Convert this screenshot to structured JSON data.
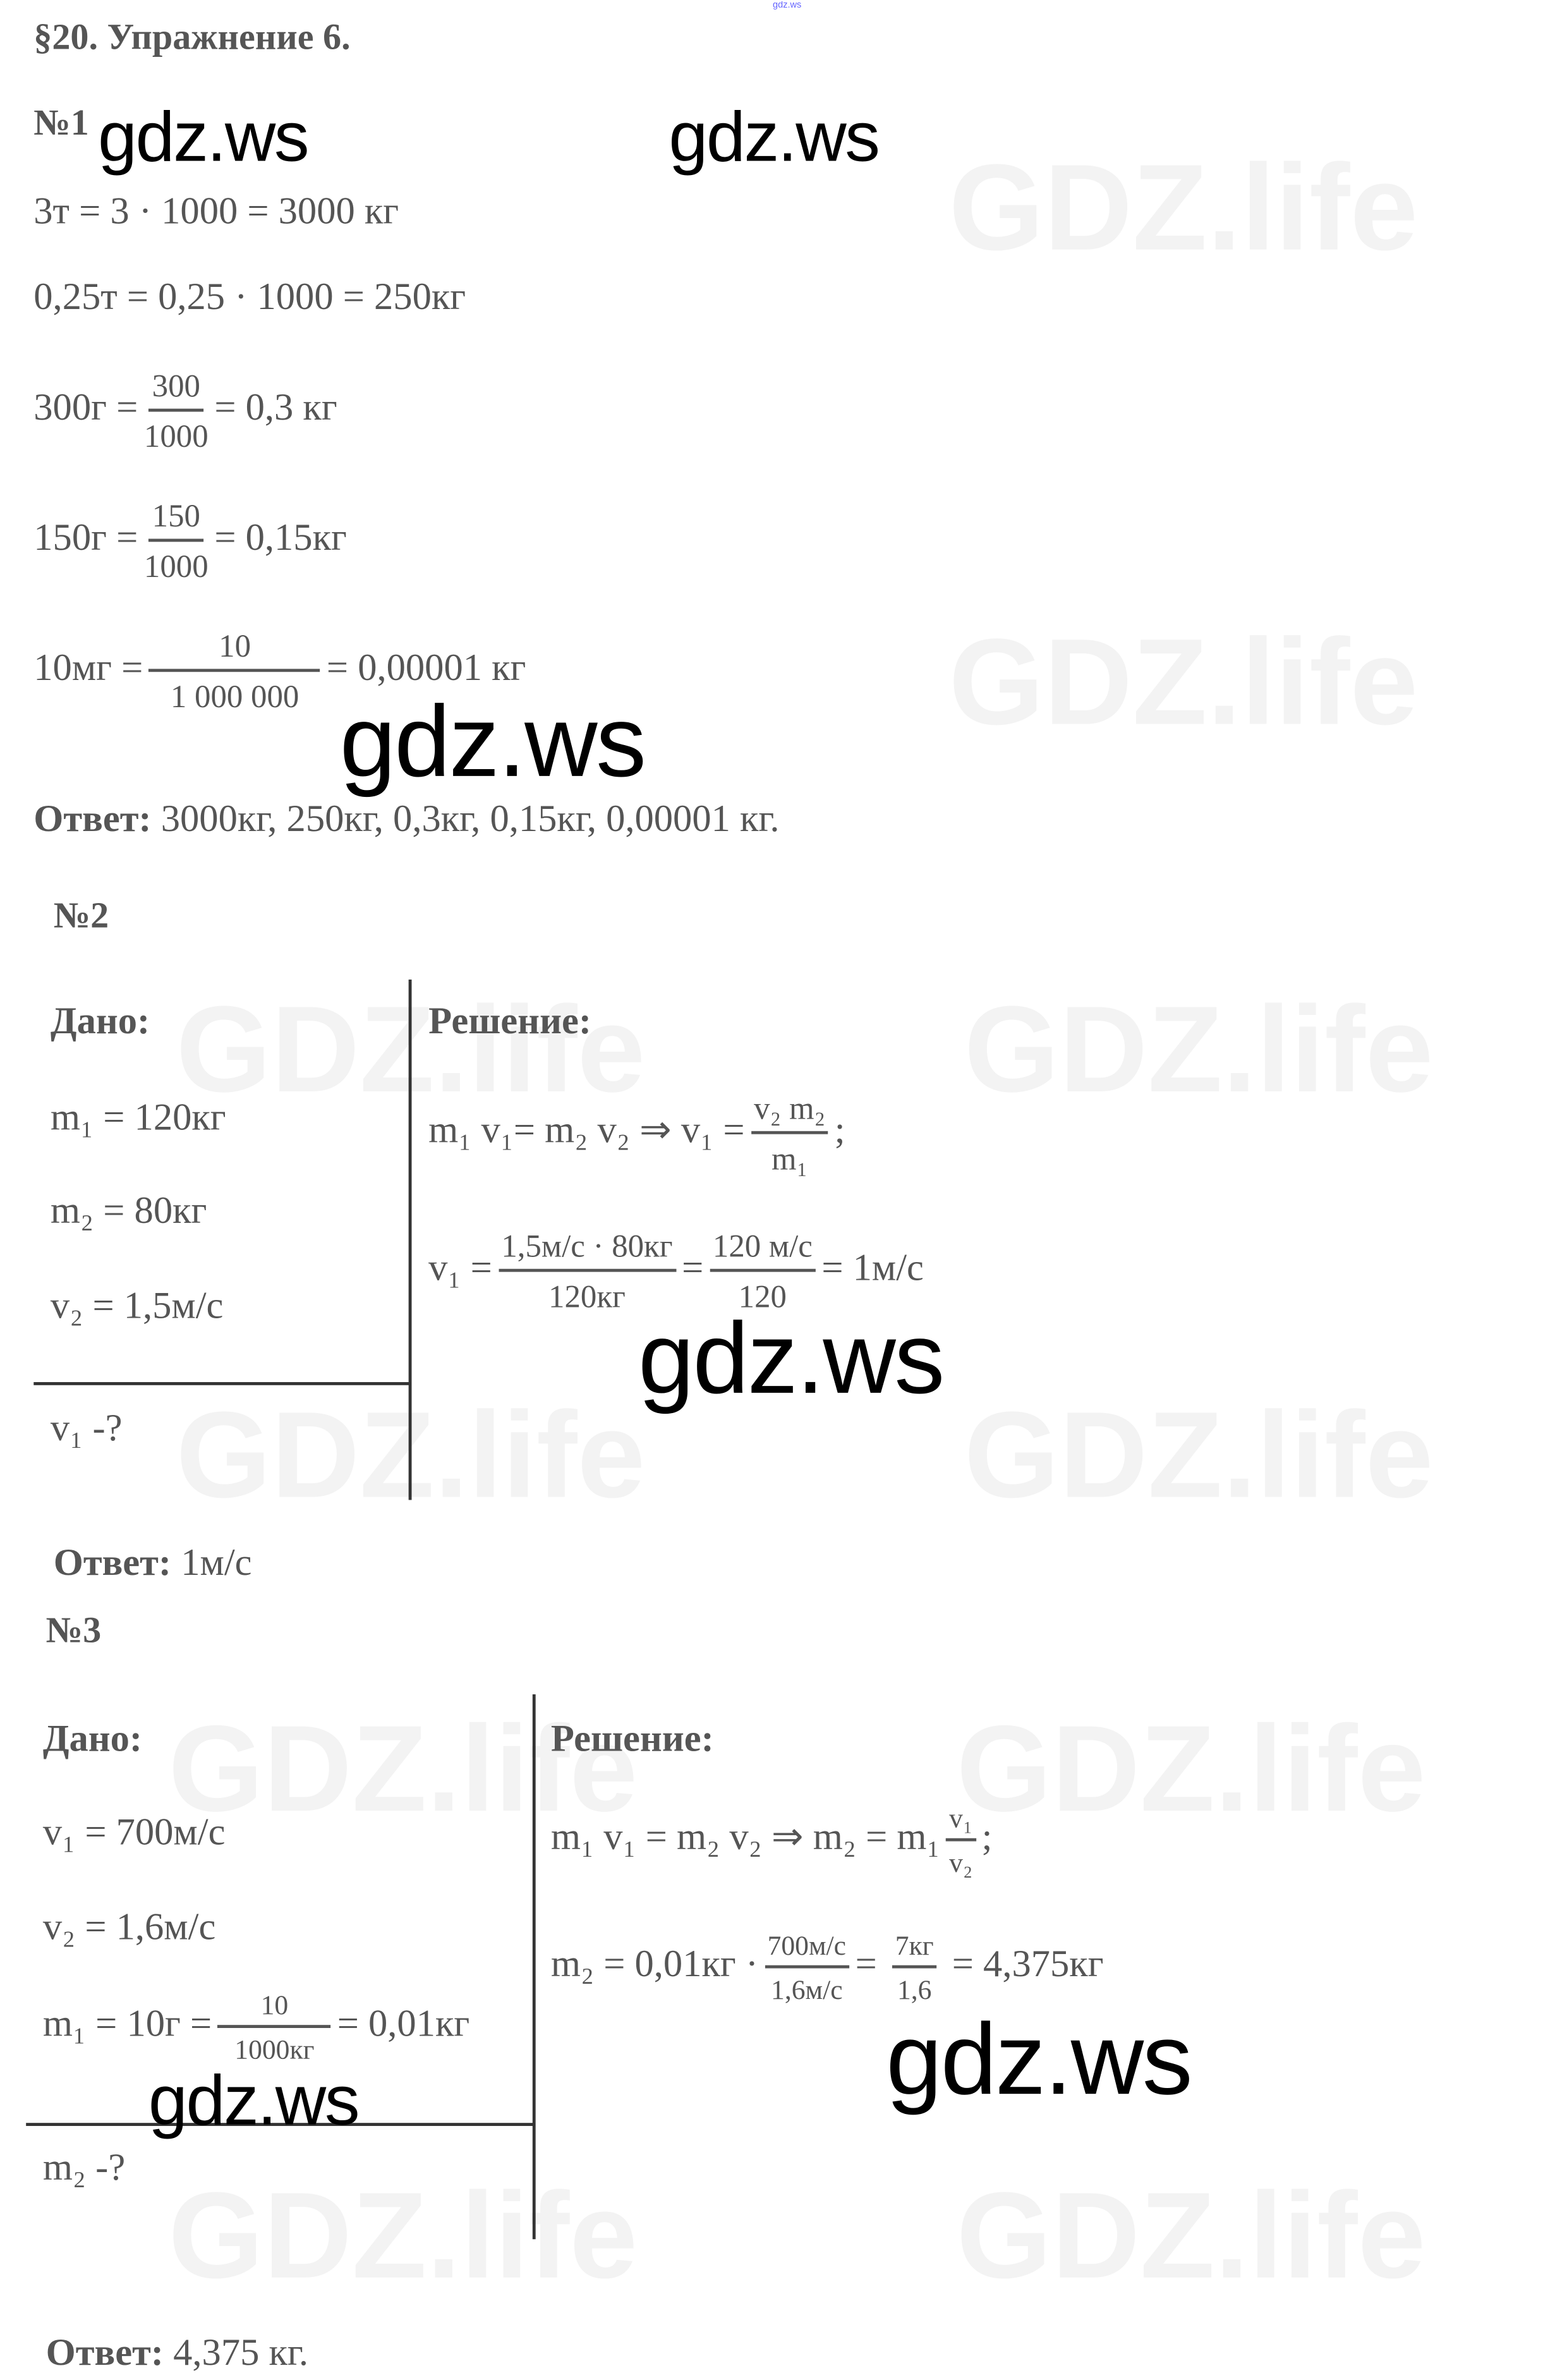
{
  "header_tiny": "gdz.ws",
  "title": "§20. Упражнение 6.",
  "watermark": "gdz.ws",
  "faint_watermark": "GDZ.life",
  "ex1": {
    "label": "№1",
    "l1": "3т = 3 · 1000 = 3000 кг",
    "l2": "0,25т = 0,25 · 1000 = 250кг",
    "l3": {
      "lhs": "300г =",
      "num": "300",
      "den": "1000",
      "rhs": "= 0,3 кг"
    },
    "l4": {
      "lhs": "150г =",
      "num": "150",
      "den": "1000",
      "rhs": "= 0,15кг"
    },
    "l5": {
      "lhs": "10мг =",
      "num": "10",
      "den": "1 000 000",
      "rhs": "= 0,00001 кг"
    },
    "answer_label": "Ответ:",
    "answer": "3000кг, 250кг, 0,3кг, 0,15кг, 0,00001 кг."
  },
  "ex2": {
    "label": "№2",
    "given_label": "Дано:",
    "given": [
      "m₁ = 120кг",
      "m₂ = 80кг",
      "v₂ = 1,5м/с"
    ],
    "find": "v₁ -?",
    "solution_label": "Решение:",
    "eq1": {
      "lhs": "m₁ v₁= m₂ v₂ ⇒  v₁ =",
      "num": "v₂ m₂",
      "den": "m₁",
      "end": ";"
    },
    "eq2": {
      "lhs": "v₁ =",
      "num1": "1,5м/с · 80кг",
      "den1": "120кг",
      "eq": "=",
      "num2": "120 м/с",
      "den2": "120",
      "rhs": "= 1м/с"
    },
    "answer_label": "Ответ:",
    "answer": "1м/с"
  },
  "ex3": {
    "label": "№3",
    "given_label": "Дано:",
    "given": [
      "v₁ = 700м/с",
      "v₂ = 1,6м/с"
    ],
    "given_m1": {
      "lhs": "m₁ = 10г =",
      "num": "10",
      "den": "1000кг",
      "rhs": "= 0,01кг"
    },
    "find": "m₂ -?",
    "solution_label": "Решение:",
    "eq1": {
      "lhs": "m₁ v₁ = m₂ v₂ ⇒ m₂ = m₁",
      "num": "v₁",
      "den": "v₂",
      "end": ";"
    },
    "eq2": {
      "lhs": "m₂ = 0,01кг ·",
      "num1": "700м/с",
      "den1": "1,6м/с",
      "eq": "=",
      "num2": "7кг",
      "den2": "1,6",
      "rhs": "= 4,375кг"
    },
    "answer_label": "Ответ:",
    "answer": "4,375 кг."
  }
}
